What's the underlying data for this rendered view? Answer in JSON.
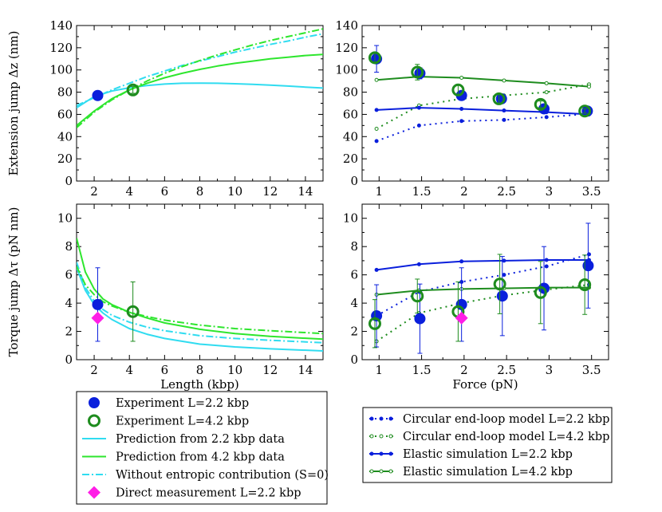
{
  "colors": {
    "blue": "#0a1fdc",
    "dark_green": "#1e8c1e",
    "cyan": "#30dcf0",
    "bright_green": "#2ee62e",
    "magenta": "#ff1ee6"
  },
  "chart_data": [
    {
      "id": "ext_vs_length",
      "type": "line",
      "xlabel": "",
      "ylabel": "Extension jump Δz (nm)",
      "xlim": [
        1,
        15
      ],
      "ylim": [
        0,
        140
      ],
      "xticks": [
        2,
        4,
        6,
        8,
        10,
        12,
        14
      ],
      "yticks": [
        0,
        20,
        40,
        60,
        80,
        100,
        120,
        140
      ],
      "series": [
        {
          "name": "Prediction from 2.2 kbp data",
          "style": "cyan",
          "x": [
            1,
            2,
            3,
            4,
            5,
            6,
            7,
            8,
            9,
            10,
            11,
            12,
            13,
            14,
            15
          ],
          "y": [
            66,
            76,
            81,
            84,
            86,
            87.3,
            88,
            88.2,
            88,
            87.6,
            87,
            86.3,
            85.5,
            84.6,
            83.7
          ]
        },
        {
          "name": "Prediction from 4.2 kbp data",
          "style": "green",
          "x": [
            1,
            2,
            3,
            4,
            5,
            6,
            7,
            8,
            9,
            10,
            11,
            12,
            13,
            14,
            15
          ],
          "y": [
            50,
            63,
            74,
            82,
            88,
            93,
            97,
            100.5,
            103.5,
            106,
            108,
            110,
            111.5,
            113,
            114
          ]
        },
        {
          "name": "Without entropic contribution (S=0)",
          "style": "cyan_dashdot",
          "x": [
            1,
            2,
            3,
            4,
            5,
            6,
            7,
            8,
            9,
            10,
            11,
            12,
            13,
            14,
            15
          ],
          "y": [
            68,
            75,
            82,
            88,
            94,
            99,
            104,
            108,
            112,
            116,
            119.5,
            123,
            126,
            129.5,
            132.5
          ]
        },
        {
          "name": "Without entropic contribution (S=0)",
          "style": "green_dashdot",
          "x": [
            1,
            2,
            3,
            4,
            5,
            6,
            7,
            8,
            9,
            10,
            11,
            12,
            13,
            14,
            15
          ],
          "y": [
            48,
            62,
            73,
            82,
            90,
            97,
            103,
            108.5,
            113.5,
            118,
            122.5,
            126.5,
            130,
            133.5,
            137
          ]
        },
        {
          "name": "Experiment L=2.2 kbp",
          "style": "blue_dot",
          "x": [
            2.2
          ],
          "y": [
            77
          ],
          "err": [
            0
          ]
        },
        {
          "name": "Experiment L=4.2 kbp",
          "style": "green_ring",
          "x": [
            4.2
          ],
          "y": [
            82
          ],
          "err": [
            3
          ]
        }
      ]
    },
    {
      "id": "ext_vs_force",
      "type": "line",
      "xlabel": "",
      "ylabel": "",
      "xlim": [
        0.8,
        3.7
      ],
      "ylim": [
        0,
        140
      ],
      "xticks": [
        1,
        1.5,
        2,
        2.5,
        3,
        3.5
      ],
      "yticks": [
        0,
        20,
        40,
        60,
        80,
        100,
        120,
        140
      ],
      "series": [
        {
          "name": "Circular end-loop model L=2.2 kbp",
          "style": "blue_dotted",
          "x": [
            0.97,
            1.47,
            1.97,
            2.47,
            2.97,
            3.47
          ],
          "y": [
            36,
            50,
            54,
            55,
            57.5,
            60.5
          ]
        },
        {
          "name": "Circular end-loop model L=4.2 kbp",
          "style": "green_dotted",
          "x": [
            0.97,
            1.47,
            1.97,
            2.47,
            2.97,
            3.47
          ],
          "y": [
            47,
            68,
            74,
            77,
            80,
            87
          ]
        },
        {
          "name": "Elastic simulation L=2.2 kbp",
          "style": "blue_solid",
          "x": [
            0.97,
            1.47,
            1.97,
            2.47,
            2.97,
            3.47
          ],
          "y": [
            64,
            66,
            65,
            63.5,
            62,
            60
          ]
        },
        {
          "name": "Elastic simulation L=4.2 kbp",
          "style": "green_solid",
          "x": [
            0.97,
            1.47,
            1.97,
            2.47,
            2.97,
            3.47
          ],
          "y": [
            91,
            94,
            93,
            90.5,
            88,
            85
          ]
        },
        {
          "name": "Experiment L=2.2 kbp",
          "style": "blue_dot",
          "x": [
            0.97,
            1.48,
            1.97,
            2.44,
            2.94,
            3.45
          ],
          "y": [
            110,
            97,
            77,
            74,
            65,
            63
          ],
          "err": [
            12,
            5,
            2,
            2,
            3,
            2
          ]
        },
        {
          "name": "Experiment L=4.2 kbp",
          "style": "green_ring",
          "x": [
            0.95,
            1.45,
            1.93,
            2.41,
            2.9,
            3.42
          ],
          "y": [
            111,
            98,
            82,
            74,
            69,
            63
          ],
          "err": [
            4,
            7,
            5,
            4,
            3,
            2
          ]
        }
      ]
    },
    {
      "id": "torque_vs_length",
      "type": "line",
      "xlabel": "Length (kbp)",
      "ylabel": "Torque jump Δτ (pN nm)",
      "xlim": [
        1,
        15
      ],
      "ylim": [
        0,
        11
      ],
      "xticks": [
        2,
        4,
        6,
        8,
        10,
        12,
        14
      ],
      "yticks": [
        0,
        2,
        4,
        6,
        8,
        10
      ],
      "series": [
        {
          "name": "Prediction from 2.2 kbp data",
          "style": "cyan",
          "x": [
            1,
            1.5,
            2,
            2.5,
            3,
            4,
            5,
            6,
            8,
            10,
            12,
            15
          ],
          "y": [
            6.5,
            4.9,
            3.9,
            3.3,
            2.85,
            2.2,
            1.8,
            1.5,
            1.1,
            0.9,
            0.77,
            0.62
          ]
        },
        {
          "name": "Prediction from 4.2 kbp data",
          "style": "green",
          "x": [
            1,
            1.5,
            2,
            2.5,
            3,
            4,
            5,
            6,
            8,
            10,
            12,
            15
          ],
          "y": [
            8.6,
            6.2,
            5.0,
            4.3,
            3.9,
            3.35,
            2.95,
            2.6,
            2.15,
            1.85,
            1.65,
            1.45
          ]
        },
        {
          "name": "Without entropic contribution (S=0)",
          "style": "cyan_dashdot",
          "x": [
            1,
            1.5,
            2,
            2.5,
            3,
            4,
            5,
            6,
            8,
            10,
            12,
            15
          ],
          "y": [
            6.9,
            5.1,
            4.15,
            3.55,
            3.15,
            2.65,
            2.3,
            2.05,
            1.7,
            1.5,
            1.37,
            1.2
          ]
        },
        {
          "name": "Without entropic contribution (S=0)",
          "style": "green_dashdot",
          "x": [
            1,
            1.5,
            2,
            2.5,
            3,
            4,
            5,
            6,
            8,
            10,
            12,
            15
          ],
          "y": [
            6.6,
            5.3,
            4.6,
            4.1,
            3.8,
            3.35,
            3.05,
            2.8,
            2.45,
            2.2,
            2.05,
            1.85
          ]
        },
        {
          "name": "Experiment L=2.2 kbp",
          "style": "blue_dot",
          "x": [
            2.2
          ],
          "y": [
            3.9
          ],
          "err": [
            2.6
          ]
        },
        {
          "name": "Experiment L=4.2 kbp",
          "style": "green_ring",
          "x": [
            4.2
          ],
          "y": [
            3.4
          ],
          "err": [
            2.1
          ]
        },
        {
          "name": "Direct measurement L=2.2 kbp",
          "style": "magenta_diamond",
          "x": [
            2.2
          ],
          "y": [
            2.95
          ],
          "err": [
            0
          ]
        }
      ]
    },
    {
      "id": "torque_vs_force",
      "type": "line",
      "xlabel": "Force (pN)",
      "ylabel": "",
      "xlim": [
        0.8,
        3.7
      ],
      "ylim": [
        0,
        11
      ],
      "xticks": [
        1,
        1.5,
        2,
        2.5,
        3,
        3.5
      ],
      "yticks": [
        0,
        2,
        4,
        6,
        8,
        10
      ],
      "series": [
        {
          "name": "Circular end-loop model L=2.2 kbp",
          "style": "blue_dotted",
          "x": [
            0.97,
            1.47,
            1.97,
            2.47,
            2.97,
            3.47
          ],
          "y": [
            3.1,
            4.8,
            5.5,
            6.0,
            6.6,
            7.45
          ]
        },
        {
          "name": "Circular end-loop model L=4.2 kbp",
          "style": "green_dotted",
          "x": [
            0.97,
            1.47,
            1.97,
            2.47,
            2.97,
            3.47
          ],
          "y": [
            1.3,
            3.3,
            4.0,
            4.55,
            4.95,
            5.3
          ]
        },
        {
          "name": "Elastic simulation L=2.2 kbp",
          "style": "blue_solid",
          "x": [
            0.97,
            1.47,
            1.97,
            2.47,
            2.97,
            3.47
          ],
          "y": [
            6.35,
            6.75,
            6.95,
            7.0,
            7.05,
            7.05
          ]
        },
        {
          "name": "Elastic simulation L=4.2 kbp",
          "style": "green_solid",
          "x": [
            0.97,
            1.47,
            1.97,
            2.47,
            2.97,
            3.47
          ],
          "y": [
            4.6,
            4.9,
            5.0,
            5.05,
            5.1,
            5.1
          ]
        },
        {
          "name": "Experiment L=2.2 kbp",
          "style": "blue_dot",
          "x": [
            0.97,
            1.48,
            1.97,
            2.45,
            2.94,
            3.46
          ],
          "y": [
            3.1,
            2.9,
            3.9,
            4.5,
            5.05,
            6.65
          ],
          "err": [
            2.2,
            2.45,
            2.6,
            2.8,
            2.95,
            3.0
          ]
        },
        {
          "name": "Experiment L=4.2 kbp",
          "style": "green_ring",
          "x": [
            0.95,
            1.45,
            1.93,
            2.42,
            2.9,
            3.42
          ],
          "y": [
            2.55,
            4.5,
            3.4,
            5.35,
            4.75,
            5.3
          ],
          "err": [
            1.7,
            1.2,
            2.1,
            2.1,
            2.2,
            2.1
          ]
        },
        {
          "name": "Direct measurement L=2.2 kbp",
          "style": "magenta_diamond",
          "x": [
            1.97
          ],
          "y": [
            2.95
          ],
          "err": [
            0
          ]
        }
      ]
    }
  ],
  "legend_left": [
    {
      "label": "Experiment L=2.2 kbp",
      "marker": "blue_dot"
    },
    {
      "label": "Experiment L=4.2 kbp",
      "marker": "green_ring"
    },
    {
      "label": "Prediction from 2.2 kbp data",
      "marker": "cyan"
    },
    {
      "label": "Prediction from 4.2 kbp data",
      "marker": "green"
    },
    {
      "label": "Without entropic contribution (S=0)",
      "marker": "cyan_dashdot"
    },
    {
      "label": "Direct measurement L=2.2 kbp",
      "marker": "magenta_diamond"
    }
  ],
  "legend_right": [
    {
      "label": "Circular end-loop model L=2.2 kbp",
      "marker": "blue_dotted"
    },
    {
      "label": "Circular end-loop model L=4.2 kbp",
      "marker": "green_dotted"
    },
    {
      "label": "Elastic simulation L=2.2 kbp",
      "marker": "blue_solid"
    },
    {
      "label": "Elastic simulation L=4.2 kbp",
      "marker": "green_solid"
    }
  ]
}
